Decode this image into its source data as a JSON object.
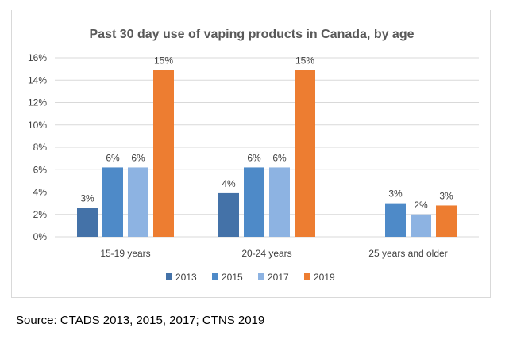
{
  "chart_data": {
    "type": "bar",
    "title": "Past 30 day use of vaping products in Canada, by age",
    "categories": [
      "15-19 years",
      "20-24 years",
      "25 years and older"
    ],
    "series": [
      {
        "name": "2013",
        "color": "#4472a8",
        "values": [
          2.6,
          3.9,
          null
        ],
        "labels": [
          "3%",
          "4%",
          null
        ]
      },
      {
        "name": "2015",
        "color": "#4e8ac8",
        "values": [
          6.2,
          6.2,
          3.0
        ],
        "labels": [
          "6%",
          "6%",
          "3%"
        ]
      },
      {
        "name": "2017",
        "color": "#8db3e2",
        "values": [
          6.2,
          6.2,
          2.0
        ],
        "labels": [
          "6%",
          "6%",
          "2%"
        ]
      },
      {
        "name": "2019",
        "color": "#ed7d31",
        "values": [
          14.9,
          14.9,
          2.8
        ],
        "labels": [
          "15%",
          "15%",
          "3%"
        ]
      }
    ],
    "ylim": [
      0,
      16
    ],
    "yticks": [
      0,
      2,
      4,
      6,
      8,
      10,
      12,
      14,
      16
    ],
    "ytick_labels": [
      "0%",
      "2%",
      "4%",
      "6%",
      "8%",
      "10%",
      "12%",
      "14%",
      "16%"
    ],
    "xlabel": "",
    "ylabel": "",
    "grid": true,
    "legend_position": "bottom"
  },
  "source_text": "Source: CTADS 2013, 2015, 2017; CTNS 2019"
}
